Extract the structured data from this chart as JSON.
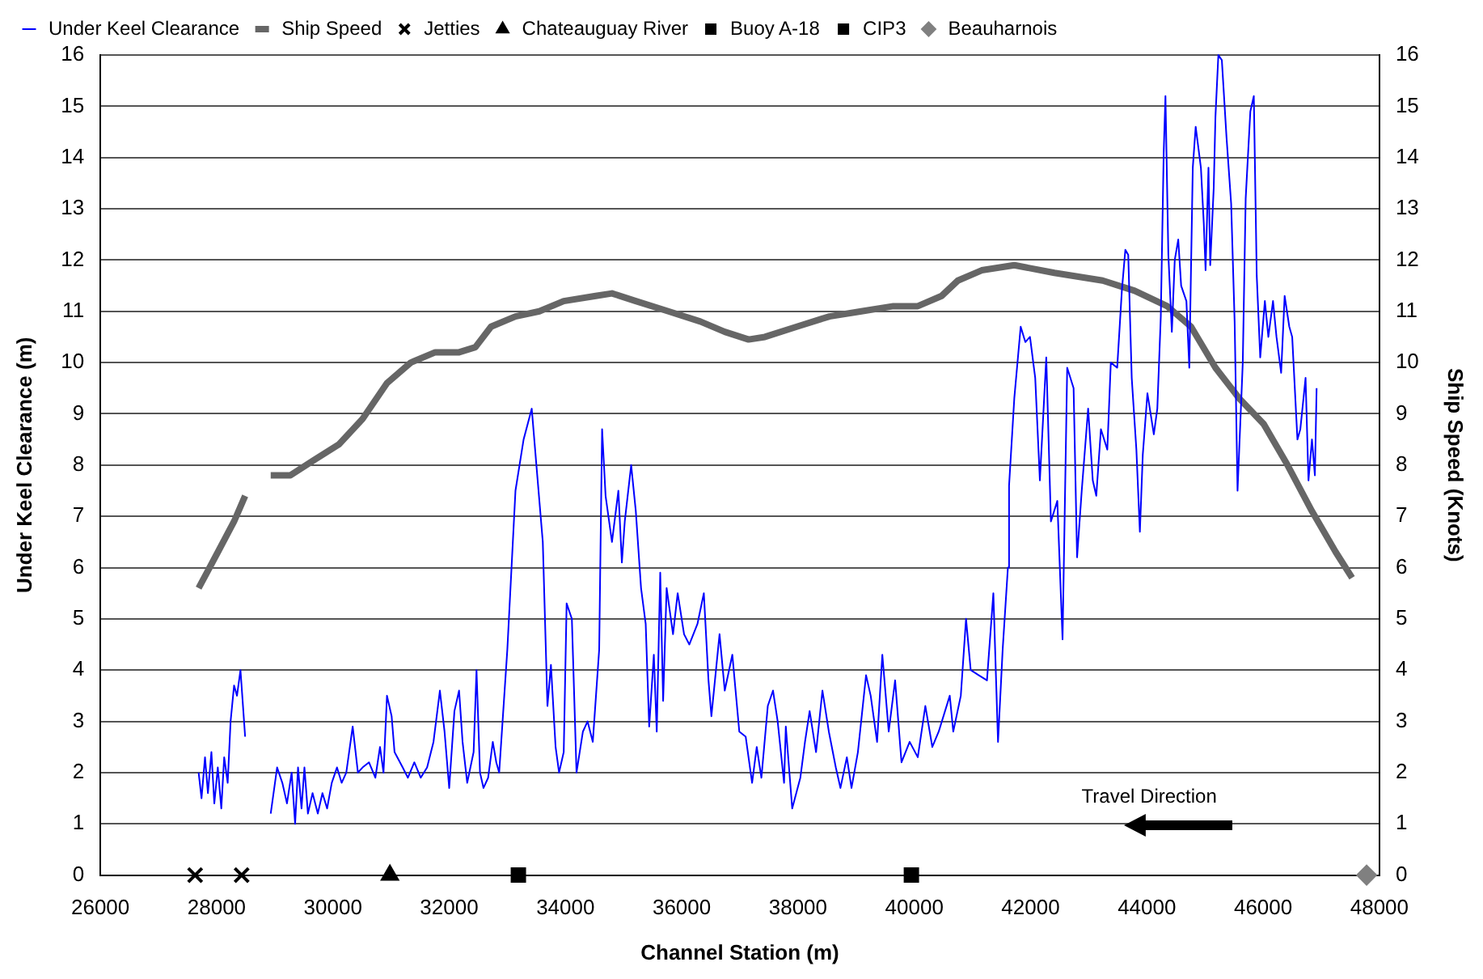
{
  "chart_data": {
    "type": "line",
    "xlabel": "Channel Station (m)",
    "ylabel": "Under Keel Clearance (m)",
    "y2label": "Ship Speed (Knots)",
    "xlim": [
      26000,
      48000
    ],
    "xticks": [
      26000,
      28000,
      30000,
      32000,
      34000,
      36000,
      38000,
      40000,
      42000,
      44000,
      46000,
      48000
    ],
    "ylim": [
      0,
      16
    ],
    "yticks": [
      0,
      1,
      2,
      3,
      4,
      5,
      6,
      7,
      8,
      9,
      10,
      11,
      12,
      13,
      14,
      15,
      16
    ],
    "y2lim": [
      0,
      16
    ],
    "y2ticks": [
      0,
      1,
      2,
      3,
      4,
      5,
      6,
      7,
      8,
      9,
      10,
      11,
      12,
      13,
      14,
      15,
      16
    ],
    "grid": "y",
    "legend": "top",
    "annotations": [
      "Travel Direction"
    ],
    "series": [
      {
        "name": "Under Keel Clearance",
        "color": "#0000ff",
        "marker": "none",
        "x": [
          28930,
          29040,
          29130,
          29210,
          29290,
          29350,
          29400,
          29460,
          29510,
          29570,
          29650,
          29740,
          29820,
          29900,
          29980,
          30070,
          30150,
          30230,
          30340,
          30430,
          30510,
          30620,
          30730,
          30810,
          30870,
          30930,
          31010,
          31060,
          31200,
          31290,
          31400,
          31510,
          31620,
          31730,
          31840,
          31920,
          32000,
          32090,
          32170,
          32230,
          32310,
          32420,
          32470,
          32530,
          32590,
          32670,
          32750,
          32810,
          32860,
          33000,
          33140,
          33280,
          33420,
          33500,
          33610,
          33690,
          33750,
          33830,
          33890,
          33970,
          34020,
          34110,
          34190,
          34300,
          34380,
          34470,
          34580,
          34630,
          34690,
          34800,
          34910,
          34970,
          35020,
          35130,
          35210,
          35300,
          35380,
          35440,
          35520,
          35570,
          35630,
          35680,
          35740,
          35850,
          35930,
          36040,
          36130,
          36270,
          36380,
          36460,
          36510,
          36650,
          36740,
          36870,
          36990,
          37100,
          37210,
          37290,
          37370,
          37480,
          37570,
          37650,
          37760,
          37790,
          37900,
          38040,
          38120,
          38200,
          38310,
          38420,
          38530,
          38650,
          38730,
          38840,
          38920,
          39030,
          39170,
          39250,
          39360,
          39450,
          39560,
          39670,
          39780,
          39920,
          40060,
          40190,
          40310,
          40420,
          40610,
          40670,
          40800,
          40890,
          40970,
          41110,
          41250,
          41360,
          41440,
          41520,
          41610,
          41630,
          41720,
          41830,
          41910,
          41990,
          42080,
          42160,
          42270,
          42350,
          42460,
          42550,
          42630,
          42740,
          42800,
          42880,
          42990,
          43070,
          43130,
          43210,
          43320,
          43380,
          43490,
          43570,
          43630,
          43680,
          43740,
          43820,
          43880,
          43930,
          44010,
          44120,
          44180,
          44240,
          44290,
          44320,
          44370,
          44430,
          44480,
          44540,
          44590,
          44680,
          44730,
          44790,
          44840,
          44930,
          44980,
          45010,
          45060,
          45090,
          45150,
          45180,
          45230,
          45290,
          45370,
          45450,
          45510,
          45560,
          45650,
          45700,
          45780,
          45840,
          45890,
          45950,
          46030,
          46090,
          46170,
          46230,
          46310,
          46370,
          46450,
          46500,
          46590,
          46640,
          46730,
          46780,
          46840,
          46890,
          46920
        ],
        "values": [
          1.2,
          2.1,
          1.8,
          1.4,
          2.0,
          1.0,
          2.1,
          1.3,
          2.1,
          1.2,
          1.6,
          1.2,
          1.6,
          1.3,
          1.8,
          2.1,
          1.8,
          2.0,
          2.9,
          2.0,
          2.1,
          2.2,
          1.9,
          2.5,
          2.0,
          3.5,
          3.1,
          2.4,
          2.1,
          1.9,
          2.2,
          1.9,
          2.1,
          2.6,
          3.6,
          2.8,
          1.7,
          3.2,
          3.6,
          2.6,
          1.8,
          2.4,
          4.0,
          2.0,
          1.7,
          1.9,
          2.6,
          2.2,
          2.0,
          4.4,
          7.5,
          8.5,
          9.1,
          8.0,
          6.5,
          3.3,
          4.1,
          2.5,
          2.0,
          2.4,
          5.3,
          5.0,
          2.0,
          2.8,
          3.0,
          2.6,
          4.4,
          8.7,
          7.4,
          6.5,
          7.5,
          6.1,
          6.9,
          8.0,
          7.1,
          5.6,
          4.9,
          2.9,
          4.3,
          2.8,
          5.9,
          3.4,
          5.6,
          4.7,
          5.5,
          4.7,
          4.5,
          4.9,
          5.5,
          3.8,
          3.1,
          4.7,
          3.6,
          4.3,
          2.8,
          2.7,
          1.8,
          2.5,
          1.9,
          3.3,
          3.6,
          3.0,
          1.8,
          2.9,
          1.3,
          1.9,
          2.6,
          3.2,
          2.4,
          3.6,
          2.8,
          2.1,
          1.7,
          2.3,
          1.7,
          2.4,
          3.9,
          3.5,
          2.6,
          4.3,
          2.8,
          3.8,
          2.2,
          2.6,
          2.3,
          3.3,
          2.5,
          2.8,
          3.5,
          2.8,
          3.5,
          5.0,
          4.0,
          3.9,
          3.8,
          5.5,
          2.6,
          4.4,
          6.0,
          7.6,
          9.3,
          10.7,
          10.4,
          10.5,
          9.7,
          7.7,
          10.1,
          6.9,
          7.3,
          4.6,
          9.9,
          9.5,
          6.2,
          7.5,
          9.1,
          7.7,
          7.4,
          8.7,
          8.3,
          10.0,
          9.9,
          11.4,
          12.2,
          12.1,
          9.7,
          8.3,
          6.7,
          8.2,
          9.4,
          8.6,
          9.1,
          10.9,
          14.1,
          15.2,
          12.1,
          10.6,
          12.0,
          12.4,
          11.5,
          11.2,
          9.9,
          13.8,
          14.6,
          13.8,
          12.7,
          11.8,
          13.8,
          11.9,
          13.4,
          14.8,
          16.0,
          15.9,
          14.4,
          13.1,
          10.8,
          7.5,
          10.0,
          13.2,
          14.9,
          15.2,
          11.7,
          10.1,
          11.2,
          10.5,
          11.2,
          10.5,
          9.8,
          11.3,
          10.7,
          10.5,
          8.5,
          8.7,
          9.7,
          7.7,
          8.5,
          7.8,
          9.5
        ]
      },
      {
        "name": "Ship Speed",
        "axis": "y2",
        "color": "#666666",
        "marker": "none",
        "x": [
          28930,
          29270,
          29680,
          30100,
          30510,
          30930,
          31340,
          31760,
          32170,
          32450,
          32720,
          33140,
          33550,
          33970,
          34520,
          34800,
          35210,
          35770,
          36320,
          36740,
          37150,
          37430,
          37980,
          38540,
          39090,
          39640,
          40060,
          40470,
          40750,
          41160,
          41720,
          42410,
          43240,
          43790,
          44350,
          44760,
          45180,
          45590,
          46010,
          46420,
          46840,
          47250,
          47530
        ],
        "values": [
          7.8,
          7.8,
          8.1,
          8.4,
          8.9,
          9.6,
          10.0,
          10.2,
          10.2,
          10.3,
          10.7,
          10.9,
          11.0,
          11.2,
          11.3,
          11.35,
          11.2,
          11.0,
          10.8,
          10.6,
          10.45,
          10.5,
          10.7,
          10.9,
          11.0,
          11.1,
          11.1,
          11.3,
          11.6,
          11.8,
          11.9,
          11.75,
          11.6,
          11.4,
          11.1,
          10.7,
          9.9,
          9.3,
          8.8,
          8.0,
          7.1,
          6.3,
          5.8
        ]
      },
      {
        "name": "Jetties",
        "type": "scatter",
        "color": "#000000",
        "marker": "cross",
        "x": [
          27630,
          28430
        ],
        "values": [
          0,
          0
        ]
      },
      {
        "name": "Chateauguay River",
        "type": "scatter",
        "color": "#000000",
        "marker": "triangle",
        "x": [
          30980
        ],
        "values": [
          0
        ]
      },
      {
        "name": "Buoy A-18",
        "type": "scatter",
        "color": "#000000",
        "marker": "square",
        "x": [
          33190
        ],
        "values": [
          0
        ]
      },
      {
        "name": "CIP3",
        "type": "scatter",
        "color": "#000000",
        "marker": "square",
        "x": [
          39950
        ],
        "values": [
          0
        ]
      },
      {
        "name": "Beauharnois",
        "type": "scatter",
        "color": "#808080",
        "marker": "diamond",
        "x": [
          47780
        ],
        "values": [
          0
        ]
      },
      {
        "color": "#0000ff",
        "marker": "none",
        "x": [
          27690,
          27740,
          27800,
          27850,
          27910,
          27960,
          28020,
          28080,
          28130,
          28190,
          28240,
          28300,
          28350,
          28410,
          28490
        ],
        "values": [
          2.0,
          1.5,
          2.3,
          1.6,
          2.4,
          1.4,
          2.1,
          1.3,
          2.3,
          1.8,
          3.0,
          3.7,
          3.5,
          4.0,
          2.7
        ]
      },
      {
        "axis": "y2",
        "color": "#666666",
        "marker": "none",
        "x": [
          27690,
          28020,
          28300,
          28490
        ],
        "values": [
          5.6,
          6.3,
          6.9,
          7.4
        ]
      }
    ]
  }
}
